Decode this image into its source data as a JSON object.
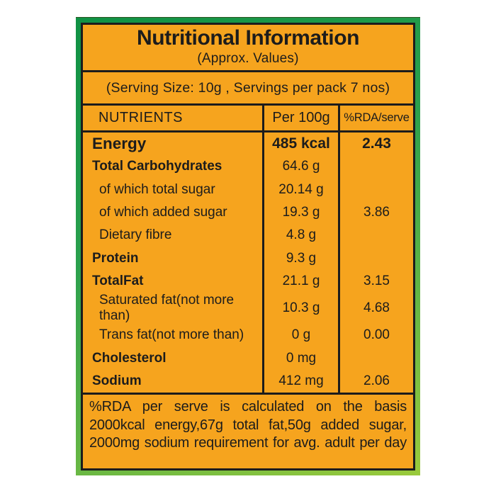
{
  "label": {
    "title": "Nutritional Information",
    "subtitle": "(Approx. Values)",
    "serving_line": "(Serving Size: 10g , Servings per pack 7 nos)",
    "columns": [
      "NUTRIENTS",
      "Per 100g",
      "%RDA/serve"
    ],
    "rows": [
      {
        "name": "Energy",
        "per100": "485 kcal",
        "rda": "2.43",
        "bold": true,
        "emphasis": true,
        "indent": false
      },
      {
        "name": "Total Carbohydrates",
        "per100": "64.6 g",
        "rda": "",
        "bold": true,
        "emphasis": false,
        "indent": false
      },
      {
        "name": "of which total sugar",
        "per100": "20.14 g",
        "rda": "",
        "bold": false,
        "emphasis": false,
        "indent": true
      },
      {
        "name": "of which added sugar",
        "per100": "19.3 g",
        "rda": "3.86",
        "bold": false,
        "emphasis": false,
        "indent": true
      },
      {
        "name": "Dietary fibre",
        "per100": "4.8 g",
        "rda": "",
        "bold": false,
        "emphasis": false,
        "indent": true
      },
      {
        "name": "Protein",
        "per100": "9.3 g",
        "rda": "",
        "bold": true,
        "emphasis": false,
        "indent": false
      },
      {
        "name": "TotalFat",
        "per100": "21.1 g",
        "rda": "3.15",
        "bold": true,
        "emphasis": false,
        "indent": false
      },
      {
        "name": "Saturated fat(not more than)",
        "per100": "10.3 g",
        "rda": "4.68",
        "bold": false,
        "emphasis": false,
        "indent": true
      },
      {
        "name": "Trans fat(not more than)",
        "per100": "0 g",
        "rda": "0.00",
        "bold": false,
        "emphasis": false,
        "indent": true
      },
      {
        "name": "Cholesterol",
        "per100": "0 mg",
        "rda": "",
        "bold": true,
        "emphasis": false,
        "indent": false
      },
      {
        "name": "Sodium",
        "per100": "412 mg",
        "rda": "2.06",
        "bold": true,
        "emphasis": false,
        "indent": false
      }
    ],
    "footnote_lines": [
      "%RDA per serve is calculated on the basis",
      "2000kcal energy,67g total fat,50g added sugar,",
      "2000mg sodium requirement for avg. adult per day"
    ],
    "colors": {
      "panel_background": "#f6a41e",
      "frame_green_dark": "#0f9144",
      "frame_green_light": "#9aca3c",
      "line_black": "#1c1c1c"
    }
  }
}
